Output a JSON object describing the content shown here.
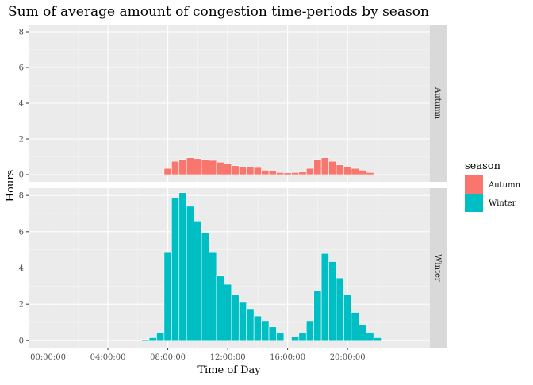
{
  "chart_data": {
    "type": "bar",
    "title": "Sum of average amount of congestion time-periods by season",
    "xlabel": "Time of Day",
    "ylabel": "Hours",
    "x_tick_labels": [
      "00:00:00",
      "04:00:00",
      "08:00:00",
      "12:00:00",
      "16:00:00",
      "20:00:00"
    ],
    "x_tick_hours": [
      0,
      4,
      8,
      12,
      16,
      20
    ],
    "xlim_hours": [
      -1.3,
      25.5
    ],
    "bin_width_hours": 0.5,
    "y_ticks": [
      0,
      2,
      4,
      6,
      8
    ],
    "ylim": [
      -0.4,
      8.4
    ],
    "grid": true,
    "facet": "season",
    "legend": {
      "title": "season",
      "position": "right",
      "entries": [
        "Autumn",
        "Winter"
      ]
    },
    "series": [
      {
        "name": "Autumn",
        "color": "#F8766D",
        "x": [
          8.0,
          8.5,
          9.0,
          9.5,
          10.0,
          10.5,
          11.0,
          11.5,
          12.0,
          12.5,
          13.0,
          13.5,
          14.0,
          14.5,
          15.0,
          15.5,
          16.0,
          16.5,
          17.0,
          17.5,
          18.0,
          18.5,
          19.0,
          19.5,
          20.0,
          20.5,
          21.0,
          21.5
        ],
        "values": [
          0.35,
          0.75,
          0.85,
          0.95,
          0.9,
          0.85,
          0.8,
          0.7,
          0.6,
          0.5,
          0.45,
          0.42,
          0.4,
          0.25,
          0.2,
          0.12,
          0.1,
          0.12,
          0.15,
          0.35,
          0.85,
          0.95,
          0.75,
          0.55,
          0.45,
          0.35,
          0.25,
          0.12
        ]
      },
      {
        "name": "Winter",
        "color": "#00BFC4",
        "x": [
          6.5,
          7.0,
          7.5,
          8.0,
          8.5,
          9.0,
          9.5,
          10.0,
          10.5,
          11.0,
          11.5,
          12.0,
          12.5,
          13.0,
          13.5,
          14.0,
          14.5,
          15.0,
          15.5,
          16.0,
          16.5,
          17.0,
          17.5,
          18.0,
          18.5,
          19.0,
          19.5,
          20.0,
          20.5,
          21.0,
          21.5,
          22.0
        ],
        "values": [
          0.05,
          0.15,
          0.45,
          4.85,
          7.85,
          8.15,
          7.4,
          6.55,
          5.95,
          4.85,
          3.55,
          3.1,
          2.55,
          2.1,
          1.75,
          1.35,
          1.05,
          0.75,
          0.4,
          0.0,
          0.2,
          0.4,
          1.05,
          2.75,
          4.8,
          4.35,
          3.45,
          2.55,
          1.55,
          0.85,
          0.4,
          0.15
        ]
      }
    ]
  }
}
